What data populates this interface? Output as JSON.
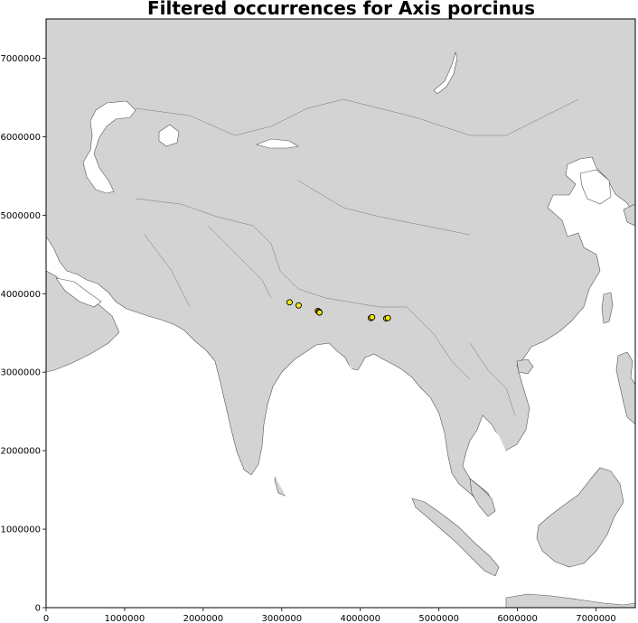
{
  "title": "Filtered occurrences for Axis porcinus",
  "chart_data": {
    "type": "scatter",
    "title": "Filtered occurrences for Axis porcinus",
    "xlim": [
      0,
      7500000
    ],
    "ylim": [
      0,
      7500000
    ],
    "xticks": [
      0,
      1000000,
      2000000,
      3000000,
      4000000,
      5000000,
      6000000,
      7000000
    ],
    "yticks": [
      0,
      1000000,
      2000000,
      3000000,
      4000000,
      5000000,
      6000000,
      7000000
    ],
    "xtick_labels": [
      "0",
      "1000000",
      "2000000",
      "3000000",
      "4000000",
      "5000000",
      "6000000",
      "7000000"
    ],
    "ytick_labels": [
      "0",
      "1000000",
      "2000000",
      "3000000",
      "4000000",
      "5000000",
      "6000000",
      "7000000"
    ],
    "grid": false,
    "points": [
      {
        "x": 3100000,
        "y": 3890000
      },
      {
        "x": 3215000,
        "y": 3850000
      },
      {
        "x": 3460000,
        "y": 3780000
      },
      {
        "x": 3475000,
        "y": 3770000
      },
      {
        "x": 3480000,
        "y": 3760000
      },
      {
        "x": 4135000,
        "y": 3690000
      },
      {
        "x": 4150000,
        "y": 3700000
      },
      {
        "x": 4330000,
        "y": 3685000
      },
      {
        "x": 4350000,
        "y": 3690000
      }
    ],
    "marker_color": "#f5e616",
    "marker_edge": "#000000",
    "land_color": "#d3d3d3",
    "border_color": "#555555",
    "water_color": "#ffffff"
  }
}
